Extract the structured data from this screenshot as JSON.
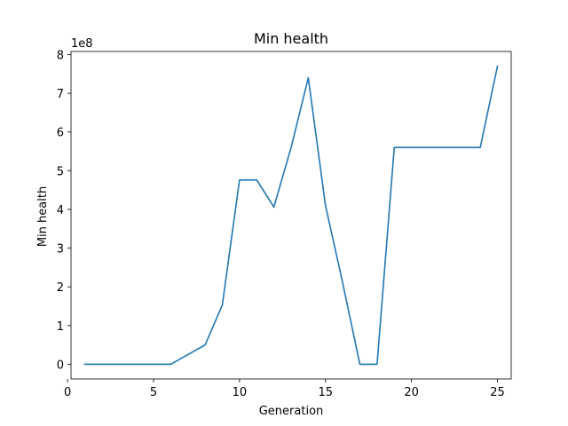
{
  "chart_data": {
    "type": "line",
    "title": "Min health",
    "xlabel": "Generation",
    "ylabel": "Min health",
    "y_offset_label": "1e8",
    "xlim": [
      0.2,
      25.8
    ],
    "ylim": [
      -38000000,
      808000000
    ],
    "x_ticks": [
      0,
      5,
      10,
      15,
      20,
      25
    ],
    "x_tick_labels": [
      "0",
      "5",
      "10",
      "15",
      "20",
      "25"
    ],
    "y_ticks": [
      0,
      100000000,
      200000000,
      300000000,
      400000000,
      500000000,
      600000000,
      700000000,
      800000000
    ],
    "y_tick_labels": [
      "0",
      "1",
      "2",
      "3",
      "4",
      "5",
      "6",
      "7",
      "8"
    ],
    "grid": false,
    "series": [
      {
        "color": "#1f77b4",
        "x": [
          1,
          2,
          3,
          4,
          5,
          6,
          7,
          8,
          9,
          10,
          11,
          12,
          13,
          14,
          15,
          16,
          17,
          18,
          19,
          20,
          21,
          22,
          23,
          24,
          25
        ],
        "y": [
          0,
          0,
          0,
          0,
          0,
          0,
          25000000,
          50000000,
          153000000,
          476000000,
          476000000,
          406000000,
          560000000,
          740000000,
          410000000,
          210000000,
          0,
          0,
          560000000,
          560000000,
          560000000,
          560000000,
          560000000,
          560000000,
          770000000
        ]
      }
    ]
  }
}
